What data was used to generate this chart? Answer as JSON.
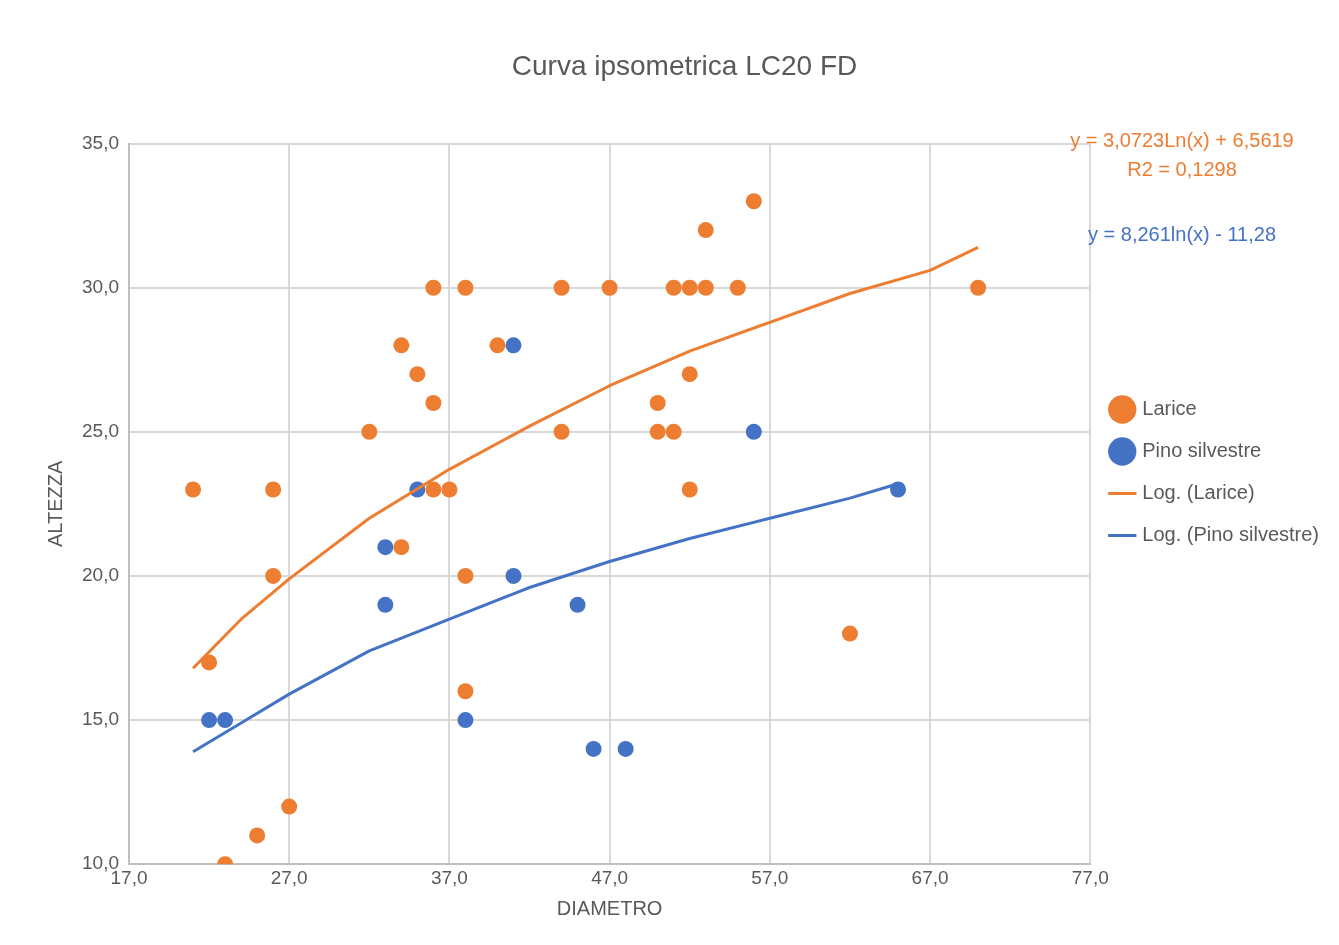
{
  "chart_data": {
    "type": "scatter",
    "title": "Curva ipsometrica LC20 FD",
    "xlabel": "DIAMETRO",
    "ylabel": "ALTEZZA",
    "xlim": [
      17,
      77
    ],
    "xticks": [
      {
        "value": 17,
        "label": "17,0"
      },
      {
        "value": 27,
        "label": "27,0"
      },
      {
        "value": 37,
        "label": "37,0"
      },
      {
        "value": 47,
        "label": "47,0"
      },
      {
        "value": 57,
        "label": "57,0"
      },
      {
        "value": 67,
        "label": "67,0"
      },
      {
        "value": 77,
        "label": "77,0"
      }
    ],
    "ylim": [
      10,
      35
    ],
    "yticks": [
      {
        "value": 10,
        "label": "10,0"
      },
      {
        "value": 15,
        "label": "15,0"
      },
      {
        "value": 20,
        "label": "20,0"
      },
      {
        "value": 25,
        "label": "25,0"
      },
      {
        "value": 30,
        "label": "30,0"
      },
      {
        "value": 35,
        "label": "35,0"
      }
    ],
    "grid": true,
    "legend": "right",
    "marker": "circle",
    "series": [
      {
        "name": "Larice",
        "color": "#ed7d31",
        "x": [
          21,
          22,
          23,
          25,
          26,
          26,
          27,
          32,
          34,
          34,
          35,
          36,
          36,
          36,
          37,
          38,
          38,
          38,
          40,
          44,
          44,
          47,
          50,
          50,
          51,
          51,
          52,
          52,
          52,
          53,
          53,
          55,
          56,
          62,
          70
        ],
        "values": [
          23,
          17,
          10,
          11,
          23,
          20,
          12,
          25,
          28,
          21,
          27,
          30,
          26,
          23,
          23,
          30,
          20,
          16,
          28,
          30,
          25,
          30,
          26,
          25,
          30,
          25,
          30,
          27,
          23,
          32,
          30,
          30,
          33,
          18,
          30
        ]
      },
      {
        "name": "Pino silvestre",
        "color": "#4472c4",
        "x": [
          22,
          23,
          33,
          33,
          35,
          38,
          41,
          41,
          45,
          46,
          48,
          56,
          65
        ],
        "values": [
          15,
          15,
          21,
          19,
          23,
          15,
          28,
          20,
          19,
          14,
          14,
          25,
          23
        ]
      },
      {
        "name": "Log. (Larice)",
        "type": "line",
        "color": "#ed7d31",
        "marker": "none",
        "x": [
          21,
          24,
          27,
          32,
          37,
          42,
          47,
          52,
          57,
          62,
          67,
          70
        ],
        "values": [
          16.8,
          18.5,
          19.9,
          22.0,
          23.7,
          25.2,
          26.6,
          27.8,
          28.8,
          29.8,
          30.6,
          31.4
        ]
      },
      {
        "name": "Log. (Pino silvestre)",
        "type": "line",
        "color": "#4472c4",
        "marker": "none",
        "x": [
          21,
          24,
          27,
          32,
          37,
          42,
          47,
          52,
          57,
          62,
          65
        ],
        "values": [
          13.9,
          14.9,
          15.9,
          17.4,
          18.5,
          19.6,
          20.5,
          21.3,
          22.0,
          22.7,
          23.2
        ]
      }
    ],
    "annotations": [
      "y = 3,0723Ln(x) + 6,5619",
      "R2 = 0,1298",
      "y = 8,261ln(x) - 11,28"
    ]
  }
}
